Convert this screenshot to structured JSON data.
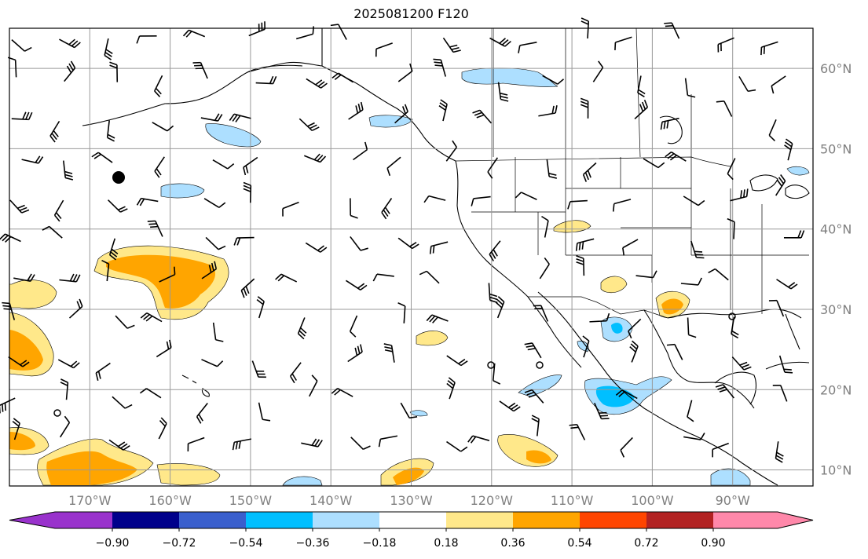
{
  "title": "2025081200 F120",
  "map": {
    "lon_range": [
      -180,
      -80
    ],
    "lat_range": [
      8,
      65
    ],
    "lon_ticks": [
      "170°W",
      "160°W",
      "150°W",
      "140°W",
      "130°W",
      "120°W",
      "110°W",
      "100°W",
      "90°W"
    ],
    "lat_ticks": [
      "60°N",
      "50°N",
      "40°N",
      "30°N",
      "20°N",
      "10°N"
    ],
    "gridlines": true,
    "coastline_color": "#000000",
    "grid_color": "#999999"
  },
  "colorbar": {
    "tick_labels": [
      "−0.90",
      "−0.72",
      "−0.54",
      "−0.36",
      "−0.18",
      "0.18",
      "0.36",
      "0.54",
      "0.72",
      "0.90"
    ],
    "colors": [
      "#9932CC",
      "#00008B",
      "#3A5FCD",
      "#00BFFF",
      "#ADDFFF",
      "#FFFFFF",
      "#FFE88A",
      "#FFA500",
      "#FF4500",
      "#B22222",
      "#FF88AA"
    ],
    "extend": "both"
  },
  "legend_colors": {
    "light_blue": "#ADDFFF",
    "blue": "#00BFFF",
    "yellow": "#FFE88A",
    "orange": "#FFA500",
    "red": "#FF4500"
  }
}
